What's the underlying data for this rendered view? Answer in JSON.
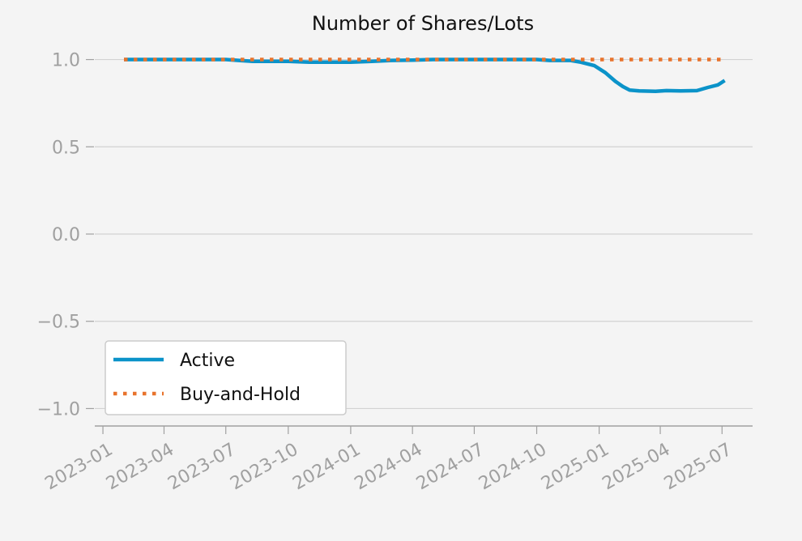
{
  "chart_data": {
    "type": "line",
    "title": "Number of Shares/Lots",
    "xlabel": "",
    "ylabel": "",
    "ylim": [
      -1.1,
      1.1
    ],
    "y_ticks": [
      1.0,
      0.5,
      0.0,
      -0.5,
      -1.0
    ],
    "y_tick_labels": [
      "1.0",
      "0.5",
      "0.0",
      "−0.5",
      "−1.0"
    ],
    "x_ticks": [
      "2023-01",
      "2023-04",
      "2023-07",
      "2023-10",
      "2024-01",
      "2024-04",
      "2024-07",
      "2024-10",
      "2025-01",
      "2025-04",
      "2025-07"
    ],
    "xlim": [
      "2022-12-20",
      "2025-08-15"
    ],
    "grid": "horizontal",
    "legend_position": "lower-left",
    "series": [
      {
        "name": "Active",
        "color": "#0b93c9",
        "style": "solid",
        "points": [
          [
            "2023-02-01",
            1.0
          ],
          [
            "2023-03-01",
            1.0
          ],
          [
            "2023-04-01",
            1.0
          ],
          [
            "2023-05-01",
            1.0
          ],
          [
            "2023-06-01",
            1.0
          ],
          [
            "2023-07-01",
            1.0
          ],
          [
            "2023-07-20",
            0.995
          ],
          [
            "2023-08-10",
            0.99
          ],
          [
            "2023-09-01",
            0.99
          ],
          [
            "2023-10-01",
            0.99
          ],
          [
            "2023-11-01",
            0.985
          ],
          [
            "2023-12-01",
            0.985
          ],
          [
            "2024-01-01",
            0.985
          ],
          [
            "2024-02-01",
            0.99
          ],
          [
            "2024-03-01",
            0.995
          ],
          [
            "2024-04-01",
            0.997
          ],
          [
            "2024-05-01",
            1.0
          ],
          [
            "2024-06-01",
            1.0
          ],
          [
            "2024-07-01",
            1.0
          ],
          [
            "2024-08-01",
            1.0
          ],
          [
            "2024-09-01",
            1.0
          ],
          [
            "2024-10-01",
            1.0
          ],
          [
            "2024-10-20",
            0.995
          ],
          [
            "2024-11-20",
            0.995
          ],
          [
            "2024-12-05",
            0.985
          ],
          [
            "2024-12-25",
            0.965
          ],
          [
            "2025-01-10",
            0.925
          ],
          [
            "2025-01-25",
            0.875
          ],
          [
            "2025-02-05",
            0.845
          ],
          [
            "2025-02-15",
            0.825
          ],
          [
            "2025-03-01",
            0.82
          ],
          [
            "2025-03-25",
            0.818
          ],
          [
            "2025-04-10",
            0.822
          ],
          [
            "2025-05-01",
            0.82
          ],
          [
            "2025-05-25",
            0.822
          ],
          [
            "2025-06-10",
            0.84
          ],
          [
            "2025-06-25",
            0.855
          ],
          [
            "2025-07-05",
            0.88
          ]
        ]
      },
      {
        "name": "Buy-and-Hold",
        "color": "#e8732c",
        "style": "dotted",
        "points": [
          [
            "2023-02-01",
            1.0
          ],
          [
            "2025-07-01",
            1.0
          ]
        ]
      }
    ]
  }
}
